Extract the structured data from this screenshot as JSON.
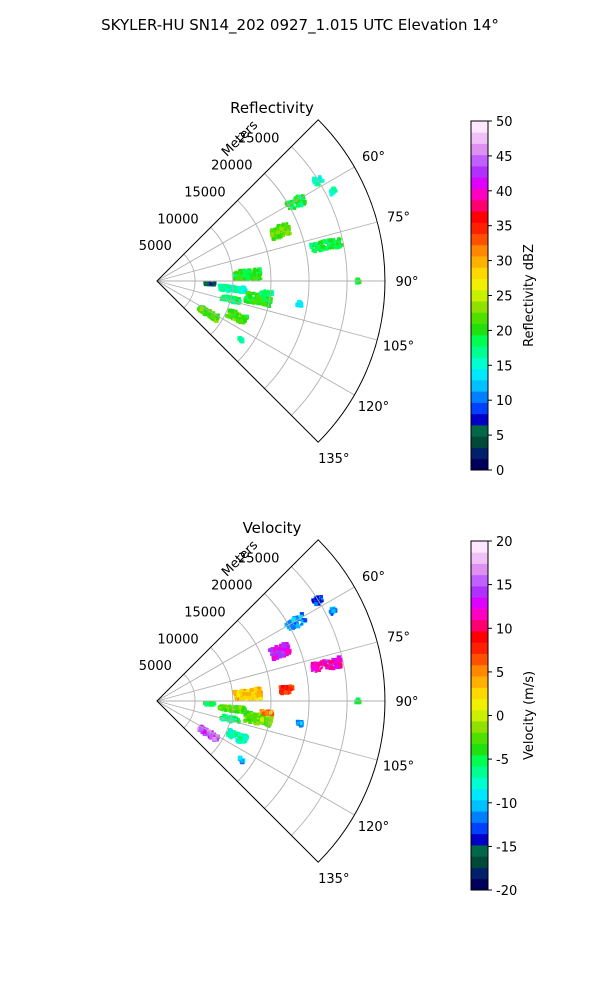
{
  "figure": {
    "title": "SKYLER-HU  SN14_202  0927_1.015 UTC Elevation 14°"
  },
  "chart_data": [
    {
      "type": "heatmap",
      "projection": "polar-sector",
      "title": "Reflectivity",
      "radial_label": "Meters",
      "radial_ticks": [
        5000,
        10000,
        15000,
        20000,
        25000
      ],
      "radial_tick_labels": [
        "5000",
        "10000",
        "15000",
        "20000",
        "25000"
      ],
      "rlim": [
        0,
        30000
      ],
      "angle_ticks": [
        60,
        75,
        90,
        105,
        120,
        135
      ],
      "angle_tick_labels": [
        "60°",
        "75°",
        "90°",
        "105°",
        "120°",
        "135°"
      ],
      "theta_range": [
        45,
        135
      ],
      "grid": true,
      "colorbar": {
        "label": "Reflectivity dBZ",
        "range": [
          0,
          50
        ],
        "ticks": [
          0,
          5,
          10,
          15,
          20,
          25,
          30,
          35,
          40,
          45,
          50
        ],
        "colors": [
          "#00005a",
          "#00206a",
          "#004838",
          "#006848",
          "#0000c8",
          "#0040ff",
          "#0080ff",
          "#00c0ff",
          "#00e8ff",
          "#00ffd0",
          "#00ff90",
          "#00ff50",
          "#20e010",
          "#50e000",
          "#90e000",
          "#c8f000",
          "#f0f000",
          "#ffd800",
          "#ffb000",
          "#ff8800",
          "#ff5000",
          "#ff2000",
          "#ff0000",
          "#ff0070",
          "#ff00c0",
          "#e000ff",
          "#b030ff",
          "#c060ff",
          "#e090f0",
          "#f0c0f8",
          "#ffe8ff"
        ]
      },
      "echoes": [
        {
          "az": 60.5,
          "r": 21000,
          "w": 3.5,
          "d": 2500,
          "v": 19
        },
        {
          "az": 58,
          "r": 25000,
          "w": 2,
          "d": 1200,
          "v": 16
        },
        {
          "az": 68,
          "r": 17500,
          "w": 5,
          "d": 2500,
          "v": 22
        },
        {
          "az": 63,
          "r": 26000,
          "w": 1.5,
          "d": 800,
          "v": 15
        },
        {
          "az": 78,
          "r": 22800,
          "w": 3,
          "d": 4000,
          "v": 19
        },
        {
          "az": 90,
          "r": 26500,
          "w": 1,
          "d": 500,
          "v": 20
        },
        {
          "az": 86,
          "r": 12000,
          "w": 6,
          "d": 3500,
          "v": 20
        },
        {
          "az": 96,
          "r": 10000,
          "w": 4,
          "d": 3500,
          "v": 16
        },
        {
          "az": 100,
          "r": 13500,
          "w": 6,
          "d": 3500,
          "v": 20
        },
        {
          "az": 104,
          "r": 10000,
          "w": 3.5,
          "d": 2500,
          "v": 18
        },
        {
          "az": 93,
          "r": 7000,
          "w": 2,
          "d": 1500,
          "v": 5
        },
        {
          "az": 96,
          "r": 14500,
          "w": 2,
          "d": 1500,
          "v": 17
        },
        {
          "az": 122,
          "r": 8000,
          "w": 5,
          "d": 2800,
          "v": 21
        },
        {
          "az": 114,
          "r": 11500,
          "w": 5,
          "d": 2500,
          "v": 21
        },
        {
          "az": 125,
          "r": 13500,
          "w": 1.5,
          "d": 600,
          "v": 17
        },
        {
          "az": 99,
          "r": 19000,
          "w": 2,
          "d": 600,
          "v": 14
        }
      ]
    },
    {
      "type": "heatmap",
      "projection": "polar-sector",
      "title": "Velocity",
      "radial_label": "Meters",
      "radial_ticks": [
        5000,
        10000,
        15000,
        20000,
        25000
      ],
      "radial_tick_labels": [
        "5000",
        "10000",
        "15000",
        "20000",
        "25000"
      ],
      "rlim": [
        0,
        30000
      ],
      "angle_ticks": [
        60,
        75,
        90,
        105,
        120,
        135
      ],
      "angle_tick_labels": [
        "60°",
        "75°",
        "90°",
        "105°",
        "120°",
        "135°"
      ],
      "theta_range": [
        45,
        135
      ],
      "grid": true,
      "colorbar": {
        "label": "Velocity (m/s)",
        "range": [
          -20,
          20
        ],
        "ticks": [
          -20,
          -15,
          -10,
          -5,
          0,
          5,
          10,
          15,
          20
        ],
        "colors": [
          "#00005a",
          "#00206a",
          "#004838",
          "#006848",
          "#0000c8",
          "#0040ff",
          "#0080ff",
          "#00c0ff",
          "#00e8ff",
          "#00ffd0",
          "#00ff90",
          "#00ff50",
          "#20e010",
          "#50e000",
          "#90e000",
          "#c8f000",
          "#f0f000",
          "#ffd800",
          "#ffb000",
          "#ff8800",
          "#ff5000",
          "#ff2000",
          "#ff0000",
          "#ff0070",
          "#ff00c0",
          "#e000ff",
          "#b030ff",
          "#c060ff",
          "#e090f0",
          "#f0c0f8",
          "#ffe8ff"
        ]
      },
      "echoes": [
        {
          "az": 60.5,
          "r": 21000,
          "w": 3.5,
          "d": 2500,
          "v": -11
        },
        {
          "az": 58,
          "r": 25000,
          "w": 2,
          "d": 1200,
          "v": -13
        },
        {
          "az": 68,
          "r": 17500,
          "w": 5,
          "d": 2500,
          "v": 13
        },
        {
          "az": 63,
          "r": 26000,
          "w": 1.5,
          "d": 800,
          "v": -11
        },
        {
          "az": 78,
          "r": 22800,
          "w": 3,
          "d": 4000,
          "v": 12
        },
        {
          "az": 90,
          "r": 26500,
          "w": 1,
          "d": 500,
          "v": -6
        },
        {
          "az": 86,
          "r": 12000,
          "w": 6,
          "d": 3500,
          "v": 3
        },
        {
          "az": 85,
          "r": 17000,
          "w": 3,
          "d": 1800,
          "v": 8
        },
        {
          "az": 96,
          "r": 10000,
          "w": 4,
          "d": 3500,
          "v": -3
        },
        {
          "az": 100,
          "r": 13500,
          "w": 6,
          "d": 3500,
          "v": -2
        },
        {
          "az": 104,
          "r": 10000,
          "w": 3.5,
          "d": 2500,
          "v": -6
        },
        {
          "az": 93,
          "r": 7000,
          "w": 2,
          "d": 1500,
          "v": -5
        },
        {
          "az": 96,
          "r": 14500,
          "w": 2,
          "d": 1500,
          "v": 5
        },
        {
          "az": 122,
          "r": 8000,
          "w": 5,
          "d": 2800,
          "v": 15
        },
        {
          "az": 114,
          "r": 11500,
          "w": 5,
          "d": 2500,
          "v": -7
        },
        {
          "az": 125,
          "r": 13500,
          "w": 1.5,
          "d": 600,
          "v": -11
        },
        {
          "az": 99,
          "r": 19000,
          "w": 2,
          "d": 600,
          "v": -11
        }
      ]
    }
  ]
}
